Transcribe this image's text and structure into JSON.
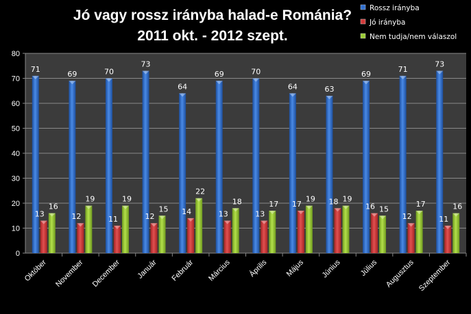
{
  "chart_data": {
    "type": "bar",
    "title": [
      "Jó vagy rossz irányba halad-e Románia?",
      "2011 okt.  - 2012 szept."
    ],
    "xlabel": "",
    "ylabel": "",
    "ylim": [
      0,
      80
    ],
    "yticks": [
      "0",
      "10",
      "20",
      "30",
      "40",
      "50",
      "60",
      "70",
      "80"
    ],
    "grid": true,
    "legend_position": "top-right",
    "categories": [
      "Október",
      "November",
      "December",
      "Január",
      "Február",
      "Március",
      "Április",
      "Május",
      "Június",
      "Július",
      "Augusztus",
      "Szeptember"
    ],
    "series": [
      {
        "name": "Rossz irányba",
        "color": "#2f6fcf",
        "values": [
          71,
          69,
          70,
          73,
          64,
          69,
          70,
          64,
          63,
          69,
          71,
          73
        ]
      },
      {
        "name": "Jó irányba",
        "color": "#d23a3a",
        "values": [
          13,
          12,
          11,
          12,
          14,
          13,
          13,
          17,
          18,
          16,
          12,
          11
        ]
      },
      {
        "name": "Nem tudja/nem válaszol",
        "color": "#9bcc35",
        "values": [
          16,
          19,
          19,
          15,
          22,
          18,
          17,
          19,
          19,
          15,
          17,
          16
        ]
      }
    ]
  }
}
